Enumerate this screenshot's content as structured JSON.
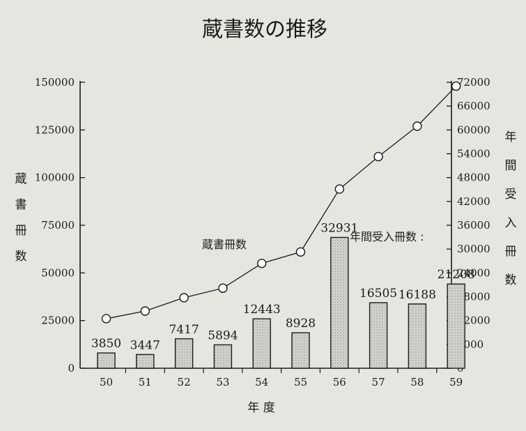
{
  "chart_data": {
    "type": "bar",
    "title": "蔵書数の推移",
    "xlabel": "年 度",
    "ylabel_left": "蔵書冊数",
    "ylabel_right": "年間受入冊数",
    "categories": [
      "50",
      "51",
      "52",
      "53",
      "54",
      "55",
      "56",
      "57",
      "58",
      "59"
    ],
    "left_axis": {
      "ylim": [
        0,
        150000
      ],
      "ticks": [
        "0",
        "25000",
        "50000",
        "75000",
        "100000",
        "125000",
        "150000"
      ]
    },
    "right_axis": {
      "ylim": [
        0,
        72000
      ],
      "ticks": [
        "0",
        "6000",
        "12000",
        "18000",
        "24000",
        "30000",
        "36000",
        "42000",
        "48000",
        "54000",
        "60000",
        "66000",
        "72000"
      ]
    },
    "series": [
      {
        "name": "年間受入冊数 :",
        "kind": "bar",
        "axis": "right",
        "values": [
          3850,
          3447,
          7417,
          5894,
          12443,
          8928,
          32931,
          16505,
          16188,
          21208
        ],
        "labels": [
          "3850",
          "3447",
          "7417",
          "5894",
          "12443",
          "8928",
          "32931",
          "16505",
          "16188",
          "21208"
        ]
      },
      {
        "name": "蔵書冊数",
        "kind": "line",
        "axis": "left",
        "values": [
          26000,
          30000,
          37000,
          42000,
          55000,
          61000,
          94000,
          111000,
          127000,
          148000
        ]
      }
    ],
    "grid": false,
    "bar_fill": "#cfcfc8",
    "line_color": "#1a1a1a",
    "marker_fill": "#ffffff"
  }
}
